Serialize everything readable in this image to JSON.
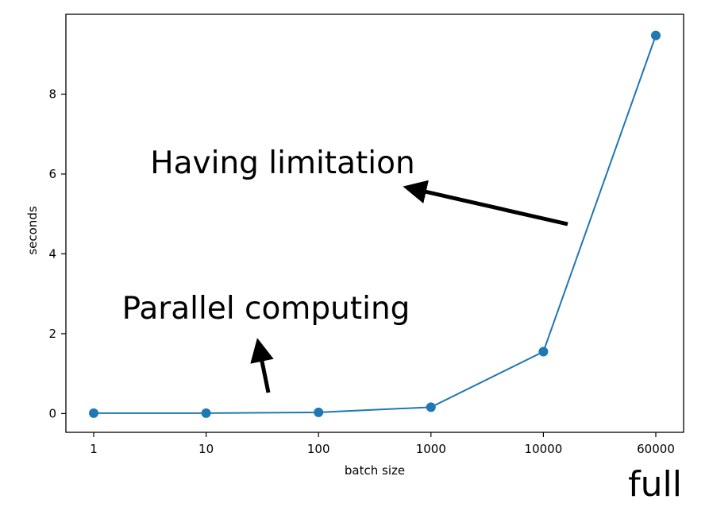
{
  "chart_data": {
    "type": "line",
    "categories": [
      "1",
      "10",
      "100",
      "1000",
      "10000",
      "60000"
    ],
    "values": [
      0.01,
      0.01,
      0.03,
      0.16,
      1.55,
      9.47
    ],
    "xlabel": "batch size",
    "ylabel": "seconds",
    "ylim": [
      -0.47,
      10.0
    ],
    "yticks": [
      0,
      2,
      4,
      6,
      8
    ],
    "grid": false,
    "line_color": "#1f77b4",
    "annotations": [
      {
        "text": "Having limitation"
      },
      {
        "text": "Parallel computing"
      }
    ]
  },
  "corner_label": "full"
}
